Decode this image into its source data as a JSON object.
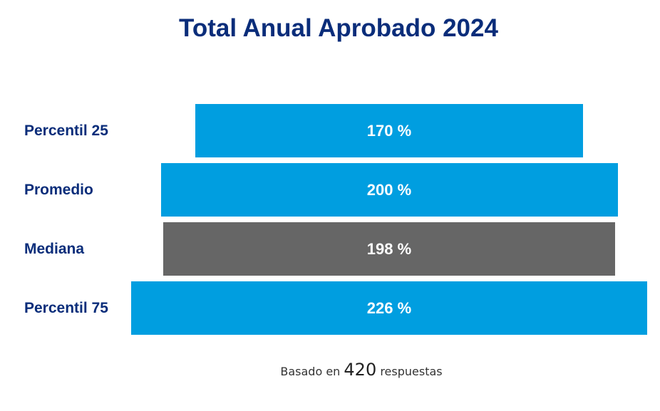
{
  "chart_data": {
    "type": "bar",
    "orientation": "horizontal-centered",
    "title": "Total Anual Aprobado 2024",
    "categories": [
      "Percentil 25",
      "Promedio",
      "Mediana",
      "Percentil 75"
    ],
    "values": [
      170,
      200,
      198,
      226
    ],
    "value_labels": [
      "170 %",
      "200 %",
      "198 %",
      "226 %"
    ],
    "unit": "%",
    "colors": [
      "#009ee0",
      "#009ee0",
      "#666666",
      "#009ee0"
    ],
    "xlabel": "",
    "ylabel": "",
    "grid": false,
    "legend": "none"
  },
  "footer": {
    "prefix": "Basado en",
    "count": "420",
    "suffix": "respuestas"
  }
}
